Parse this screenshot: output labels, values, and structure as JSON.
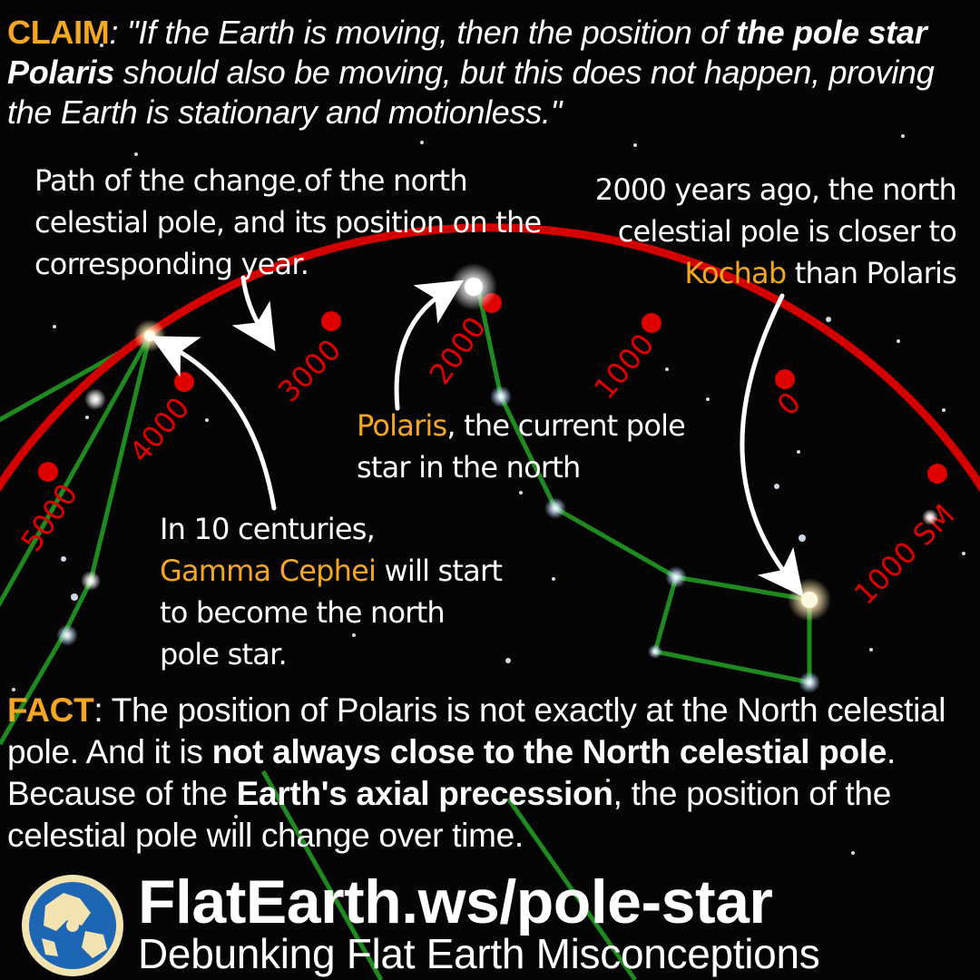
{
  "claim": {
    "label": "CLAIM",
    "text_1": ": \"If the Earth is moving, then the position of ",
    "bold_1": "the pole star Polaris",
    "text_2": " should also be moving, but this does not happen, proving the Earth is stationary and motionless.\""
  },
  "annotations": {
    "path_note": "Path of the change of the north celestial pole, and its position on the corresponding year.",
    "kochab_note_1": "2000 years ago, the north celestial pole is closer to",
    "kochab_name": "Kochab",
    "kochab_note_2": " than Polaris",
    "polaris_name": "Polaris",
    "polaris_note": ", the current pole star in the north",
    "gamma_note_1": "In 10 centuries,",
    "gamma_name": "Gamma Cephei",
    "gamma_note_2": " will start to become the north pole star."
  },
  "year_labels": [
    "5000",
    "4000",
    "3000",
    "2000",
    "1000",
    "0",
    "1000 SM"
  ],
  "fact": {
    "label": "FACT",
    "text_1": ": The position of Polaris is not exactly at the North celestial pole. And it is ",
    "bold_1": "not always close to the North celestial pole",
    "text_2": ". Because of the ",
    "bold_2": "Earth's axial precession",
    "text_3": ", the position of the celestial pole will change over time."
  },
  "footer": {
    "site": "FlatEarth.ws/pole-star",
    "tagline": "Debunking Flat Earth Misconceptions",
    "logo_icon": "globe-logo-icon"
  },
  "colors": {
    "accent": "#f5a623",
    "path_red": "#d40000",
    "constellation_green": "#1f8a1f",
    "background": "#050505"
  }
}
